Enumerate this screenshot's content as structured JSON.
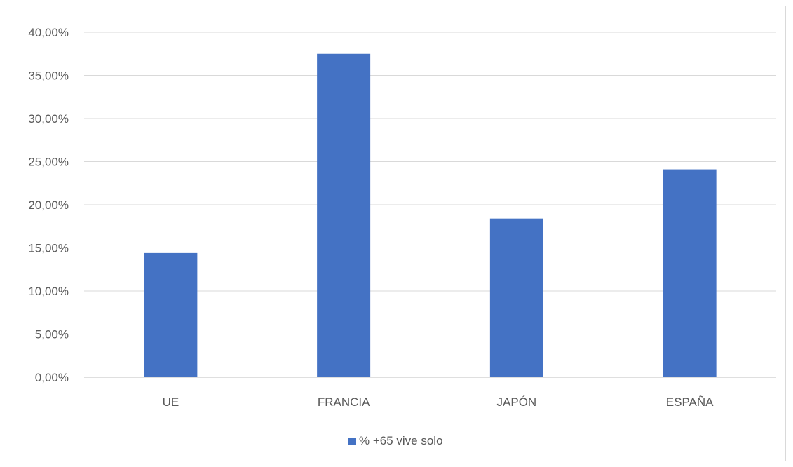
{
  "chart_data": {
    "type": "bar",
    "categories": [
      "UE",
      "FRANCIA",
      "JAPÓN",
      "ESPAÑA"
    ],
    "series": [
      {
        "name": "% +65 vive solo",
        "values": [
          14.4,
          37.5,
          18.4,
          24.1
        ],
        "color": "#4472c4"
      }
    ],
    "ylim": [
      0,
      40
    ],
    "yticks": [
      "0,00%",
      "5,00%",
      "10,00%",
      "15,00%",
      "20,00%",
      "25,00%",
      "30,00%",
      "35,00%",
      "40,00%"
    ],
    "grid": true,
    "legend_position": "bottom"
  }
}
